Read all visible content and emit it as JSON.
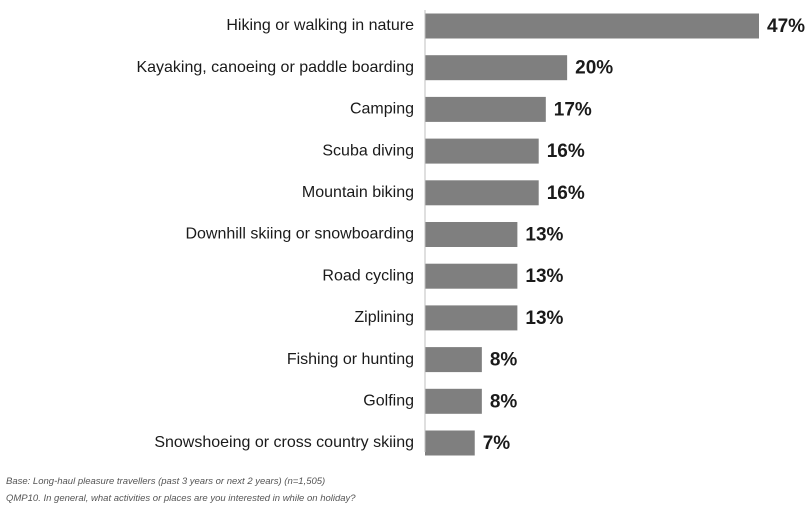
{
  "chart_data": {
    "type": "bar",
    "orientation": "horizontal",
    "categories": [
      "Hiking or walking in nature",
      "Kayaking, canoeing or paddle boarding",
      "Camping",
      "Scuba diving",
      "Mountain biking",
      "Downhill skiing or snowboarding",
      "Road cycling",
      "Ziplining",
      "Fishing or hunting",
      "Golfing",
      "Snowshoeing or cross country skiing"
    ],
    "values": [
      47,
      20,
      17,
      16,
      16,
      13,
      13,
      13,
      8,
      8,
      7
    ],
    "value_labels": [
      "47%",
      "20%",
      "17%",
      "16%",
      "16%",
      "13%",
      "13%",
      "13%",
      "8%",
      "8%",
      "7%"
    ],
    "unit": "%",
    "xlim": [
      0,
      47
    ],
    "grid": false,
    "bar_color": "#7f7f7f"
  },
  "notes": {
    "base": "Base: Long-haul pleasure travellers (past 3 years or next 2 years) (n=1,505)",
    "question": "QMP10. In general, what activities or places are you interested in while on holiday?"
  }
}
